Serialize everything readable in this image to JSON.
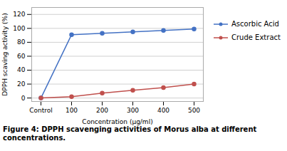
{
  "chart_data": {
    "type": "line",
    "xlabel": "Concentration (μg/ml)",
    "ylabel": "DPPH scaving activity (%)",
    "caption": "Figure 4: DPPH scavenging activities of Morus alba at different concentrations.",
    "categories": [
      "Control",
      "100",
      "200",
      "300",
      "400",
      "500"
    ],
    "series": [
      {
        "name": "Ascorbic Acid",
        "color": "#4472C4",
        "marker": "circle",
        "values": [
          0,
          91,
          93,
          95,
          97,
          99
        ]
      },
      {
        "name": "Crude Extract",
        "color": "#C0504D",
        "marker": "circle",
        "values": [
          0,
          2,
          7,
          11,
          15,
          20
        ]
      }
    ],
    "ylim": [
      -5,
      130
    ],
    "yticks": [
      0,
      20,
      40,
      60,
      80,
      100,
      120
    ],
    "grid": true,
    "legend": "right"
  }
}
